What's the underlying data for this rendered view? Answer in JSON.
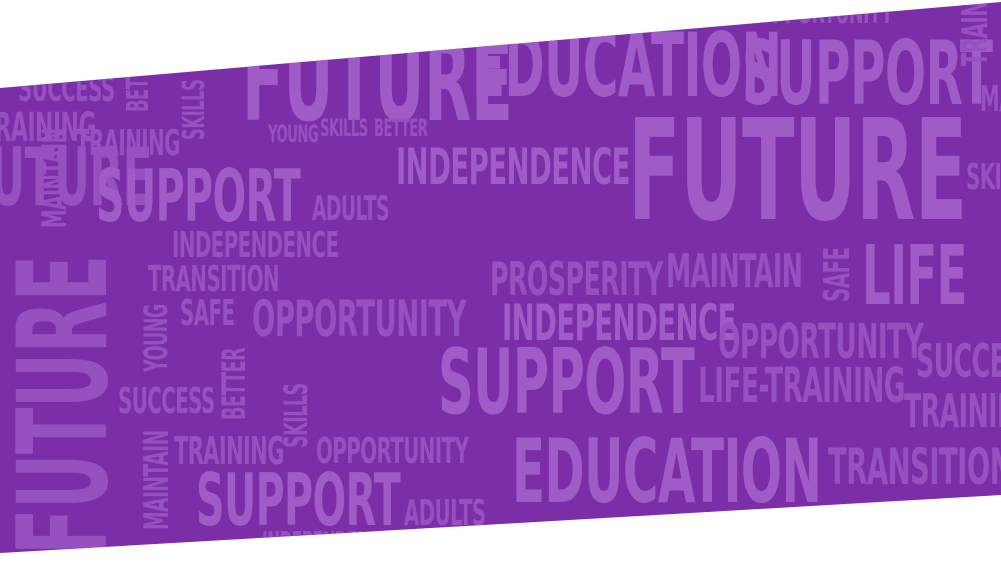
{
  "banner": {
    "background": "#7b2ea8",
    "words": {
      "w1": "SUCCESS",
      "w2": "BETTER",
      "w3": "SKILLS",
      "w4": "FUTURE",
      "w5": "EDUCATION",
      "w6": "SUPPORT",
      "w7": "OPPORTUNITY",
      "w8": "TRAINING",
      "w9": "TRAINING",
      "w10": "MAINTAIN",
      "w11": "YOUNG",
      "w12": "SKILLS",
      "w13": "BETTER",
      "w14": "INDEPENDENCE",
      "w15": "FUTURE",
      "w16": "SUPPORT",
      "w17": "ADULTS",
      "w18": "INDEPENDENCE",
      "w19": "TRANSITION",
      "w20": "FUTURE",
      "w21": "YOUNG",
      "w22": "SAFE",
      "w23": "OPPORTUNITY",
      "w24": "PROSPERITY",
      "w25": "MAINTAIN",
      "w26": "SAFE",
      "w27": "LIFE",
      "w28": "INDEPENDENCE",
      "w29": "OPPORTUNITY",
      "w30": "SUPPORT",
      "w31": "SUCCESS",
      "w32": "LIFE-TRAINING",
      "w33": "SUCCESS",
      "w34": "BETTER",
      "w35": "SKILLS",
      "w36": "TRAINING",
      "w37": "OPPORTUNITY",
      "w38": "TRAINING",
      "w39": "EDUCATION",
      "w40": "TRANSITION",
      "w41": "MAINTAIN",
      "w42": "SUPPORT",
      "w43": "ADULTS",
      "w44": "INDEPENDENCE",
      "w45": "TRAINING",
      "w46": "MAINTAIN",
      "w47": "SKILLS"
    }
  }
}
